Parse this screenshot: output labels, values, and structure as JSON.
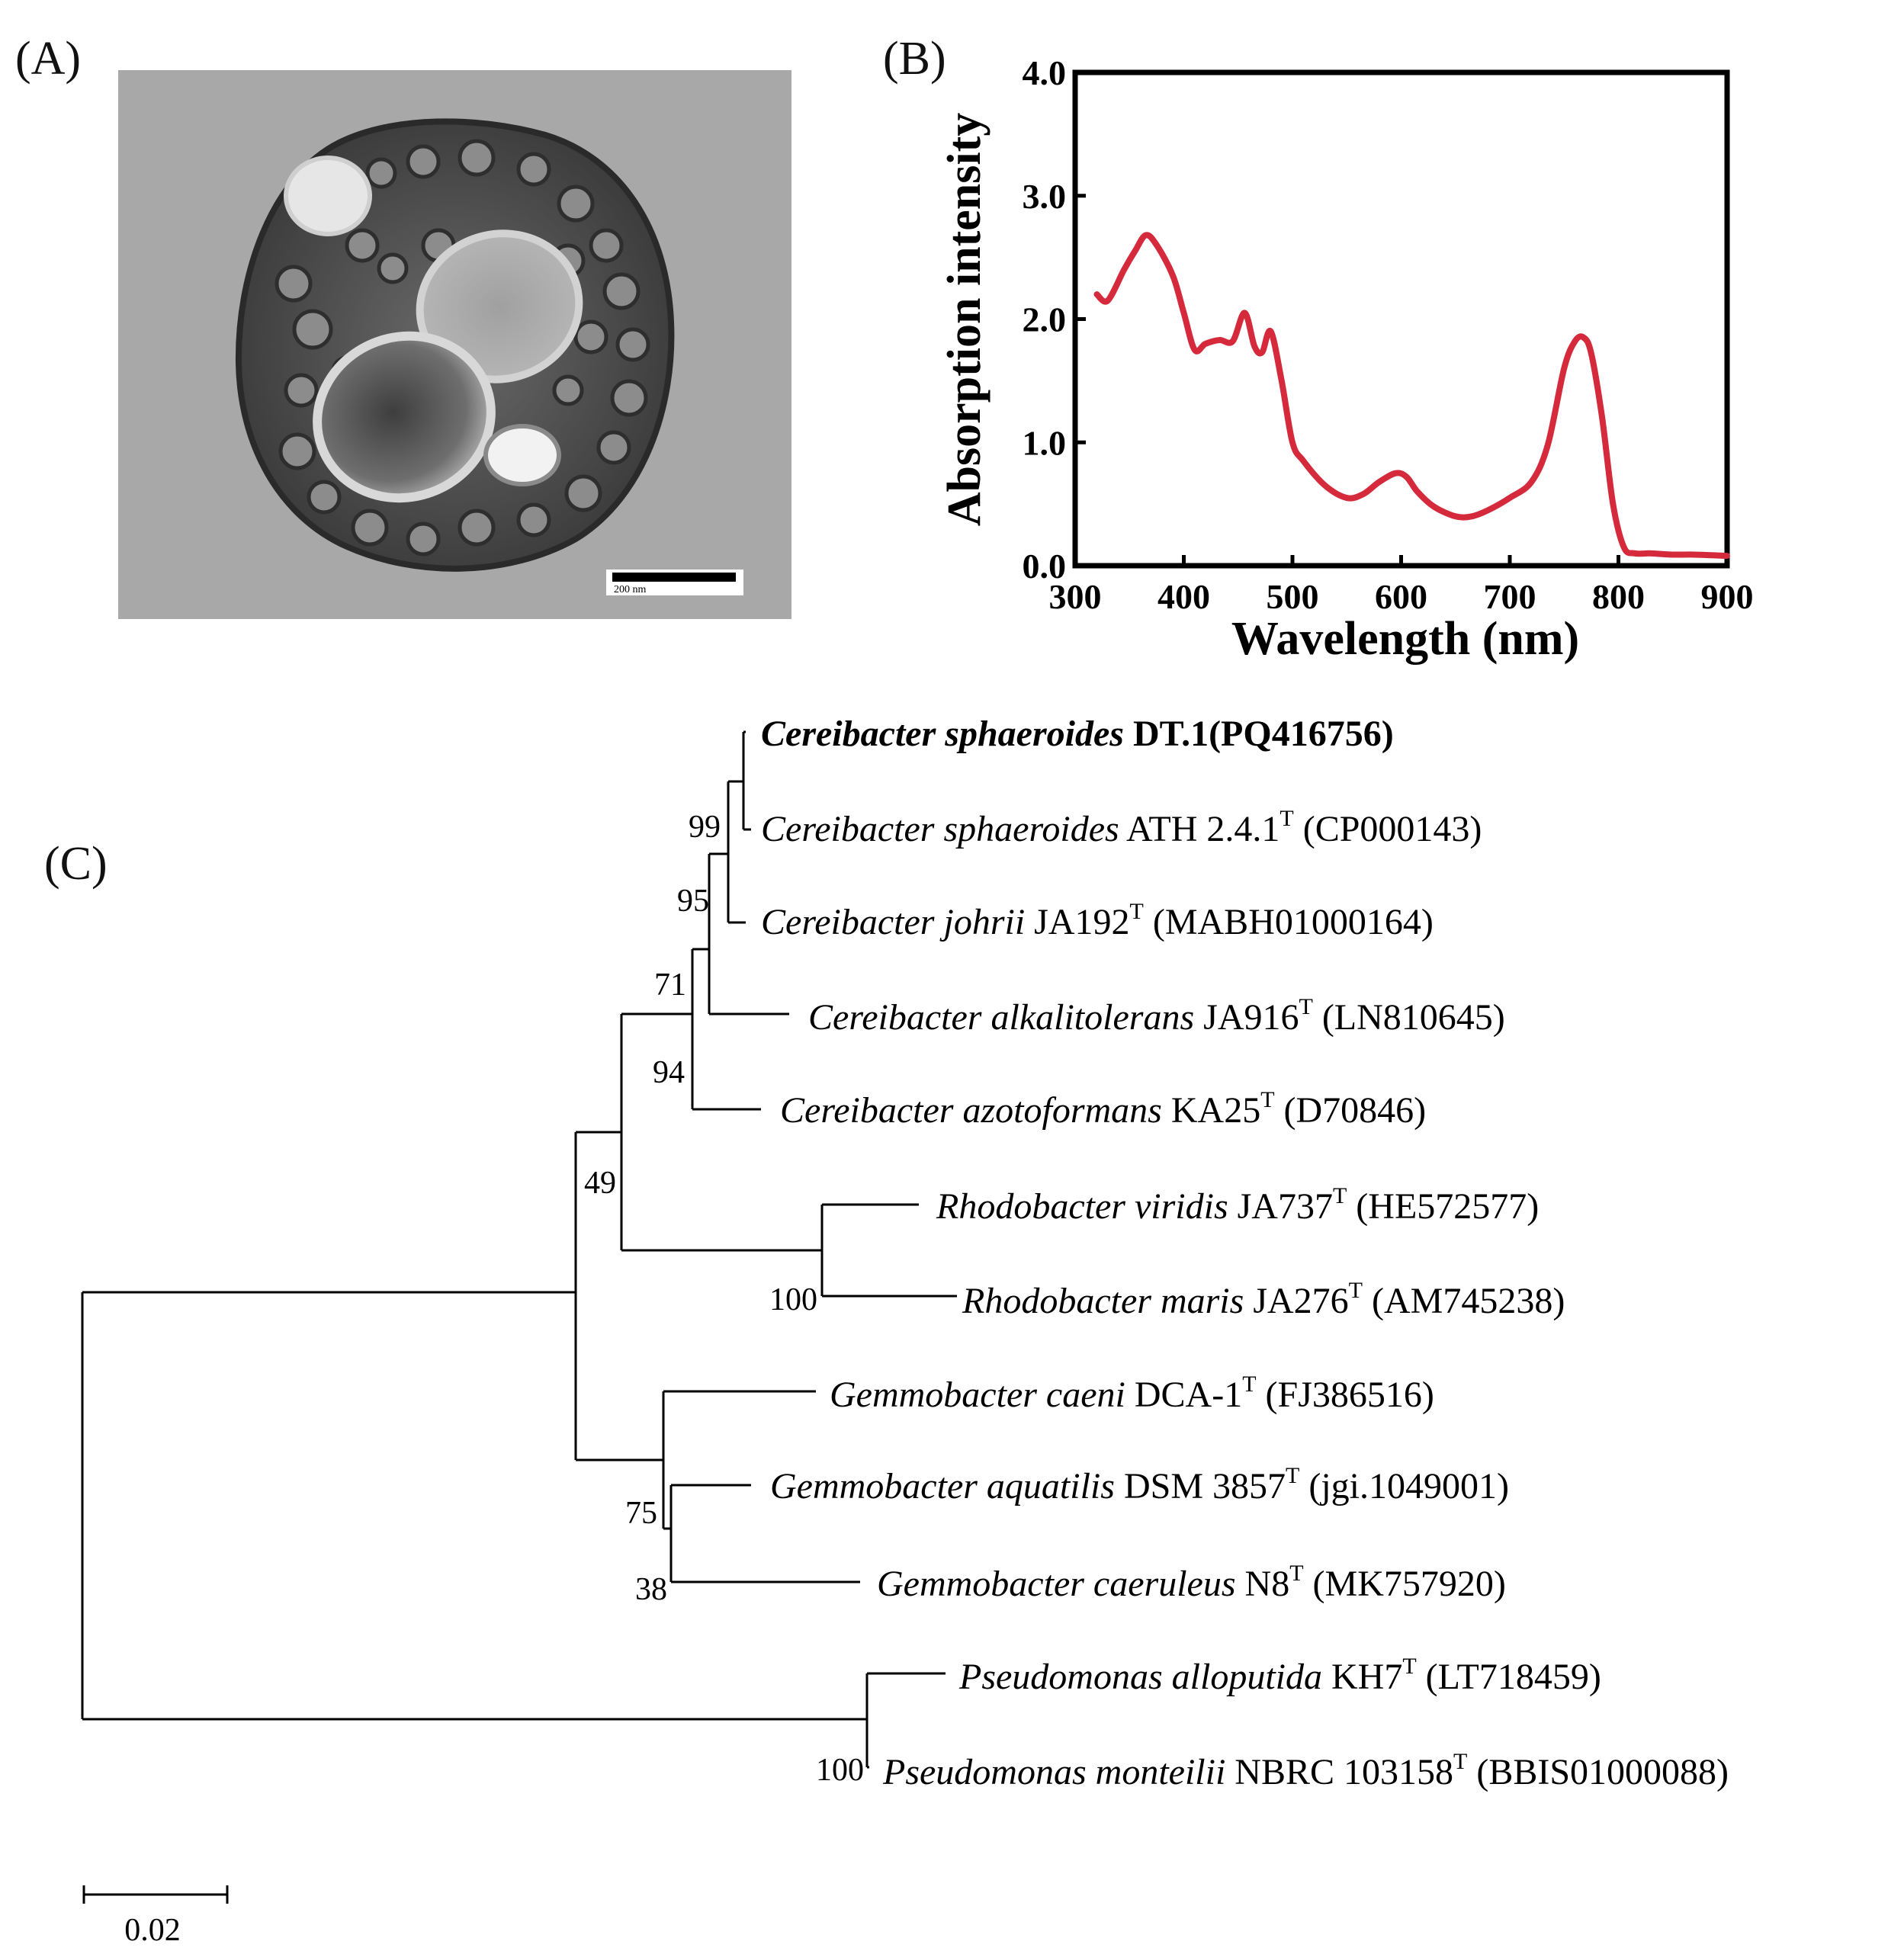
{
  "panels": {
    "a": "(A)",
    "b": "(B)",
    "c": "(C)"
  },
  "micrograph": {
    "scale_bar_label": "200 nm"
  },
  "chart_data": {
    "type": "line",
    "title": "",
    "xlabel": "Wavelength (nm)",
    "ylabel": "Absorption intensity",
    "xlim": [
      300,
      900
    ],
    "ylim": [
      0.0,
      4.0
    ],
    "x_ticks": [
      "300",
      "400",
      "500",
      "600",
      "700",
      "800",
      "900"
    ],
    "y_ticks": [
      "0.0",
      "1.0",
      "2.0",
      "3.0",
      "4.0"
    ],
    "x_tick_values": [
      300,
      400,
      500,
      600,
      700,
      800,
      900
    ],
    "y_tick_values": [
      0,
      1,
      2,
      3,
      4
    ],
    "grid": false,
    "line_color": "#d42a3c",
    "series": [
      {
        "x": [
          320,
          330,
          345,
          355,
          365,
          375,
          390,
          400,
          410,
          420,
          433,
          445,
          456,
          465,
          472,
          480,
          490,
          500,
          510,
          530,
          550,
          565,
          580,
          595,
          605,
          615,
          630,
          650,
          665,
          680,
          700,
          720,
          735,
          750,
          760,
          768,
          775,
          785,
          795,
          805,
          815,
          830,
          850,
          870,
          900
        ],
        "y": [
          2.2,
          2.15,
          2.4,
          2.55,
          2.68,
          2.6,
          2.35,
          2.05,
          1.75,
          1.8,
          1.83,
          1.82,
          2.05,
          1.78,
          1.73,
          1.9,
          1.5,
          1.0,
          0.85,
          0.65,
          0.55,
          0.58,
          0.68,
          0.75,
          0.72,
          0.6,
          0.48,
          0.4,
          0.4,
          0.45,
          0.55,
          0.68,
          0.98,
          1.6,
          1.82,
          1.85,
          1.72,
          1.2,
          0.5,
          0.15,
          0.1,
          0.1,
          0.09,
          0.09,
          0.08
        ]
      }
    ]
  },
  "tree": {
    "scale_label": "0.02",
    "taxa": [
      {
        "id": "t1",
        "genus": "Cereibacter",
        "species": "sphaeroides",
        "strain": "DT.1(PQ416756)",
        "sup": "",
        "accession": "",
        "bold": true
      },
      {
        "id": "t2",
        "genus": "Cereibacter",
        "species": "sphaeroides",
        "strain": "ATH 2.4.1",
        "sup": "T",
        "accession": "(CP000143)",
        "bold": false
      },
      {
        "id": "t3",
        "genus": "Cereibacter",
        "species": "johrii",
        "strain": "JA192",
        "sup": "T",
        "accession": "(MABH01000164)",
        "bold": false
      },
      {
        "id": "t4",
        "genus": "Cereibacter",
        "species": "alkalitolerans",
        "strain": "JA916",
        "sup": "T",
        "accession": "(LN810645)",
        "bold": false
      },
      {
        "id": "t5",
        "genus": "Cereibacter",
        "species": "azotoformans",
        "strain": "KA25",
        "sup": "T",
        "accession": "(D70846)",
        "bold": false
      },
      {
        "id": "t6",
        "genus": "Rhodobacter",
        "species": "viridis",
        "strain": "JA737",
        "sup": "T",
        "accession": "(HE572577)",
        "bold": false
      },
      {
        "id": "t7",
        "genus": "Rhodobacter",
        "species": "maris",
        "strain": "JA276",
        "sup": "T",
        "accession": "(AM745238)",
        "bold": false
      },
      {
        "id": "t8",
        "genus": "Gemmobacter",
        "species": "caeni",
        "strain": "DCA-1",
        "sup": "T",
        "accession": "(FJ386516)",
        "bold": false
      },
      {
        "id": "t9",
        "genus": "Gemmobacter",
        "species": "aquatilis",
        "strain": "DSM 3857",
        "sup": "T",
        "accession": "(jgi.1049001)",
        "bold": false
      },
      {
        "id": "t10",
        "genus": "Gemmobacter",
        "species": "caeruleus",
        "strain": "N8",
        "sup": "T",
        "accession": "(MK757920)",
        "bold": false
      },
      {
        "id": "t11",
        "genus": "Pseudomonas",
        "species": "alloputida",
        "strain": "KH7",
        "sup": "T",
        "accession": "(LT718459)",
        "bold": false
      },
      {
        "id": "t12",
        "genus": "Pseudomonas",
        "species": "monteilii",
        "strain": "NBRC 103158",
        "sup": "T",
        "accession": "(BBIS01000088)",
        "bold": false
      }
    ],
    "bootstrap": {
      "n_sph": "99",
      "n_joh": "95",
      "n_alk": "71",
      "n_azo": "94",
      "n_cer": "49",
      "n_rho": "100",
      "n_gem_a": "75",
      "n_gem_b": "38",
      "n_pse": "100"
    }
  }
}
